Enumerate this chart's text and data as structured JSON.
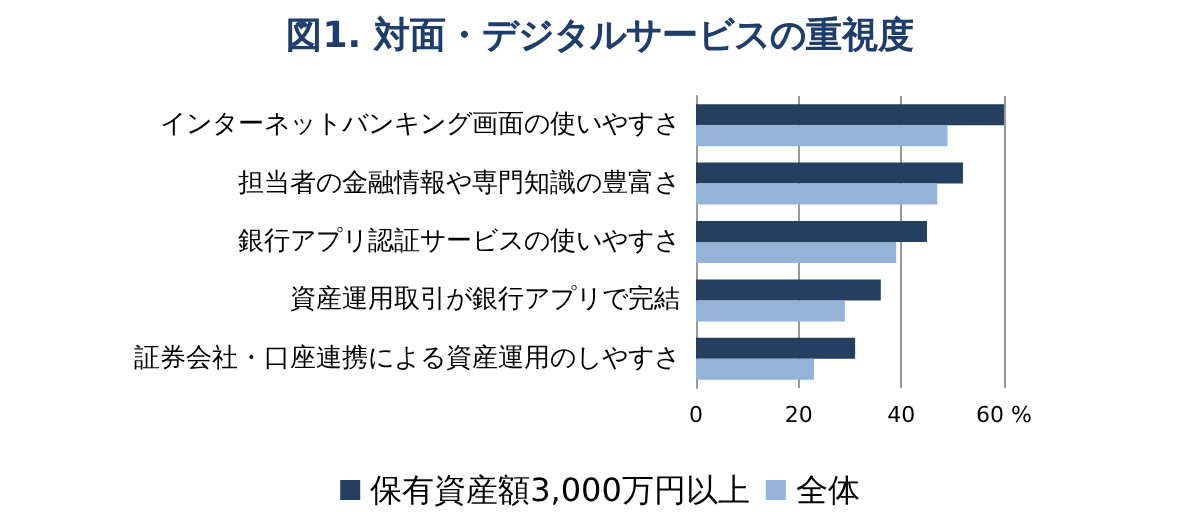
{
  "chart_data": {
    "type": "bar",
    "orientation": "horizontal",
    "title": "図1. 対面・デジタルサービスの重視度",
    "categories": [
      "インターネットバンキング画面の使いやすさ",
      "担当者の金融情報や専門知識の豊富さ",
      "銀行アプリ認証サービスの使いやすさ",
      "資産運用取引が銀行アプリで完結",
      "証券会社・口座連携による資産運用のしやすさ"
    ],
    "series": [
      {
        "name": "保有資産額3,000万円以上",
        "color": "#243f60",
        "values": [
          60,
          52,
          45,
          36,
          31
        ]
      },
      {
        "name": "全体",
        "color": "#95b3d7",
        "values": [
          49,
          47,
          39,
          29,
          23
        ]
      }
    ],
    "xlim": [
      0,
      60
    ],
    "xticks": [
      0,
      20,
      40,
      {
        "value": 60,
        "label": "60 %"
      }
    ],
    "grid": "x",
    "legend": "bottom"
  }
}
